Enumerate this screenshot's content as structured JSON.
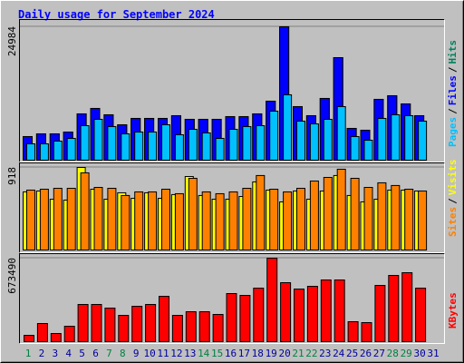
{
  "chart_data": [
    {
      "type": "bar",
      "title": "Daily usage for September 2024",
      "ylim": [
        0,
        24984
      ],
      "yticks": [
        24984
      ],
      "legend_separator": "/",
      "series": [
        {
          "name": "Hits",
          "color": "#00805c",
          "values": [
            4420,
            4930,
            4930,
            5270,
            8670,
            9690,
            8500,
            6630,
            7820,
            7820,
            7820,
            8330,
            7650,
            7650,
            7650,
            8160,
            8160,
            8670,
            11050,
            24984,
            10030,
            8330,
            11560,
            19200,
            5950,
            5610,
            11390,
            12070,
            10540,
            8330,
            null
          ]
        },
        {
          "name": "Files",
          "color": "#0000ff",
          "values": [
            4420,
            4930,
            4930,
            5270,
            8670,
            9690,
            8500,
            6630,
            7820,
            7820,
            7820,
            8330,
            7650,
            7650,
            7650,
            8160,
            8160,
            8670,
            11050,
            24984,
            10030,
            8330,
            11560,
            19200,
            5950,
            5610,
            11390,
            12070,
            10540,
            8330,
            null
          ]
        },
        {
          "name": "Pages",
          "color": "#00c0ff",
          "values": [
            3060,
            3060,
            3570,
            4080,
            6460,
            7650,
            6290,
            4930,
            5270,
            5270,
            6630,
            4760,
            5780,
            5100,
            4080,
            5780,
            6290,
            6460,
            9180,
            12240,
            7310,
            6800,
            7650,
            10030,
            4420,
            3740,
            7820,
            8500,
            8330,
            7310,
            null
          ]
        }
      ]
    },
    {
      "type": "bar",
      "ylim": [
        0,
        918
      ],
      "yticks": [
        918
      ],
      "legend_separator": "/",
      "series": [
        {
          "name": "Visits",
          "color": "#ffff00",
          "values": [
            646,
            656,
            565,
            555,
            918,
            676,
            565,
            636,
            575,
            636,
            575,
            616,
            817,
            606,
            565,
            565,
            595,
            757,
            666,
            535,
            656,
            565,
            656,
            828,
            606,
            535,
            565,
            666,
            666,
            656,
            null
          ]
        },
        {
          "name": "Sites",
          "color": "#ff8000",
          "values": [
            666,
            676,
            686,
            686,
            858,
            696,
            686,
            606,
            646,
            646,
            676,
            626,
            797,
            646,
            626,
            646,
            686,
            828,
            676,
            646,
            686,
            767,
            807,
            898,
            797,
            696,
            747,
            717,
            676,
            656,
            null
          ]
        }
      ]
    },
    {
      "type": "bar",
      "ylim": [
        0,
        673490
      ],
      "yticks": [
        673490
      ],
      "categories": [
        "1",
        "2",
        "3",
        "4",
        "5",
        "6",
        "7",
        "8",
        "9",
        "10",
        "11",
        "12",
        "13",
        "14",
        "15",
        "16",
        "17",
        "18",
        "19",
        "20",
        "21",
        "22",
        "23",
        "24",
        "25",
        "26",
        "27",
        "28",
        "29",
        "30",
        "31"
      ],
      "category_colors": [
        "#008040",
        "#0000a0",
        "#0000a0",
        "#0000a0",
        "#0000a0",
        "#0000a0",
        "#008040",
        "#008040",
        "#0000a0",
        "#0000a0",
        "#0000a0",
        "#0000a0",
        "#0000a0",
        "#008040",
        "#008040",
        "#0000a0",
        "#0000a0",
        "#0000a0",
        "#0000a0",
        "#0000a0",
        "#008040",
        "#008040",
        "#0000a0",
        "#0000a0",
        "#0000a0",
        "#0000a0",
        "#0000a0",
        "#008040",
        "#008040",
        "#0000a0",
        "#0000a0"
      ],
      "series": [
        {
          "name": "KBytes",
          "color": "#ff0000",
          "values": [
            51240,
            146400,
            65880,
            124440,
            300120,
            300120,
            270840,
            212280,
            285480,
            300120,
            366000,
            212280,
            241560,
            241560,
            219600,
            387960,
            373320,
            431880,
            673490,
            475800,
            424560,
            446520,
            497760,
            497760,
            161040,
            153720,
            453840,
            534360,
            556320,
            431880,
            null
          ]
        }
      ]
    }
  ]
}
